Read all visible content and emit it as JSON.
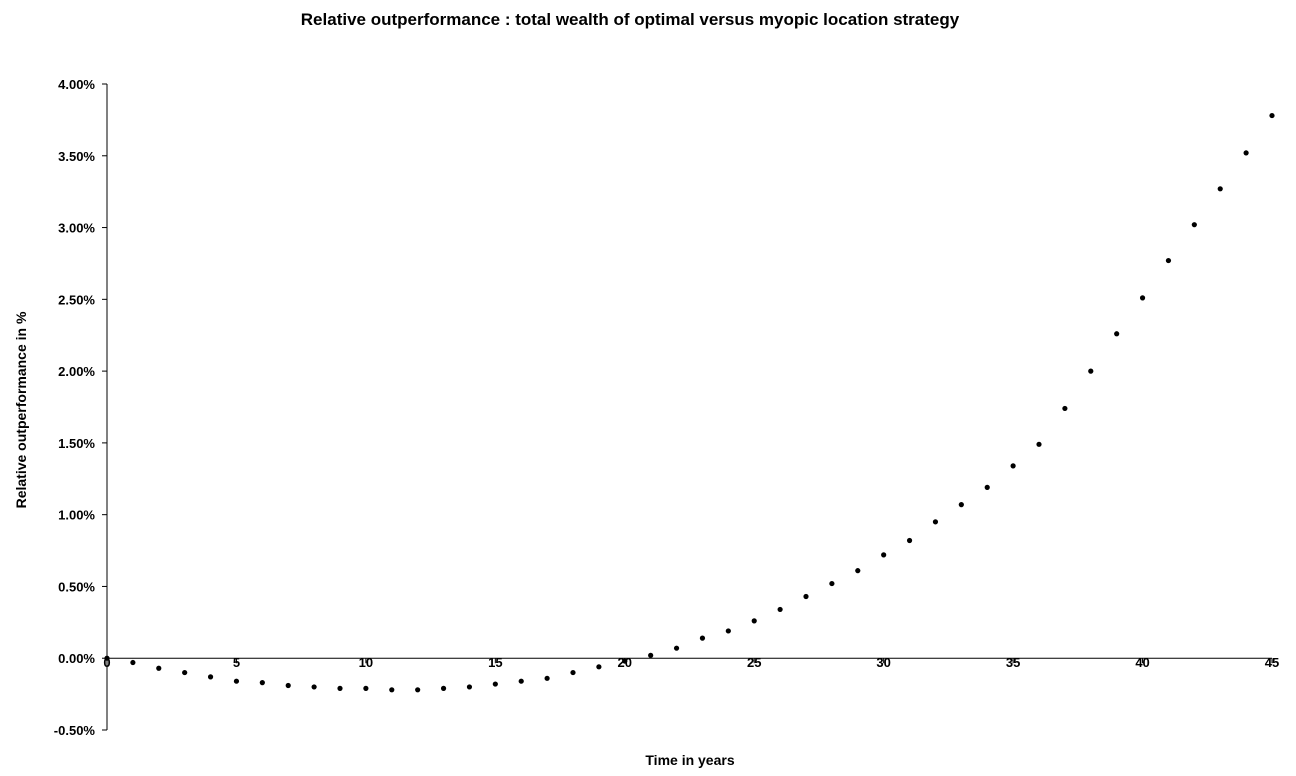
{
  "chart_data": {
    "type": "scatter",
    "title": "Relative outperformance : total wealth of optimal versus myopic location strategy",
    "xlabel": "Time in years",
    "ylabel": "Relative outperformance in %",
    "xlim": [
      0,
      45
    ],
    "ylim": [
      -0.5,
      4.0
    ],
    "x_ticks": [
      0,
      5,
      10,
      15,
      20,
      25,
      30,
      35,
      40,
      45
    ],
    "x_tick_labels": [
      "0",
      "5",
      "10",
      "15",
      "20",
      "25",
      "30",
      "35",
      "40",
      "45"
    ],
    "y_ticks": [
      -0.5,
      0.0,
      0.5,
      1.0,
      1.5,
      2.0,
      2.5,
      3.0,
      3.5,
      4.0
    ],
    "y_tick_labels": [
      "-0.50%",
      "0.00%",
      "0.50%",
      "1.00%",
      "1.50%",
      "2.00%",
      "2.50%",
      "3.00%",
      "3.50%",
      "4.00%"
    ],
    "grid": false,
    "legend": "none",
    "marker_color": "#000000",
    "series": [
      {
        "x": [
          0,
          1,
          2,
          3,
          4,
          5,
          6,
          7,
          8,
          9,
          10,
          11,
          12,
          13,
          14,
          15,
          16,
          17,
          18,
          19,
          20,
          21,
          22,
          23,
          24,
          25,
          26,
          27,
          28,
          29,
          30,
          31,
          32,
          33,
          34,
          35,
          36,
          37,
          38,
          39,
          40,
          41,
          42,
          43,
          44,
          45
        ],
        "y": [
          0.0,
          -0.03,
          -0.07,
          -0.1,
          -0.13,
          -0.16,
          -0.17,
          -0.19,
          -0.2,
          -0.21,
          -0.21,
          -0.22,
          -0.22,
          -0.21,
          -0.2,
          -0.18,
          -0.16,
          -0.14,
          -0.1,
          -0.06,
          -0.02,
          0.02,
          0.07,
          0.14,
          0.19,
          0.26,
          0.34,
          0.43,
          0.52,
          0.61,
          0.72,
          0.82,
          0.95,
          1.07,
          1.19,
          1.34,
          1.49,
          1.74,
          2.0,
          2.26,
          2.51,
          2.77,
          3.02,
          3.27,
          3.52,
          3.78
        ]
      }
    ]
  }
}
